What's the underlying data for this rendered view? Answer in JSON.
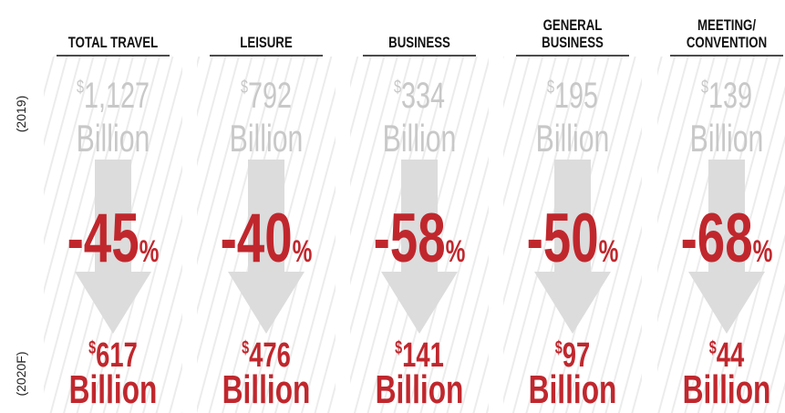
{
  "year_labels": {
    "before": "(2019)",
    "after": "(2020F)"
  },
  "columns": [
    {
      "header": [
        "TOTAL TRAVEL"
      ],
      "before": {
        "currency": "$",
        "amount": "1,127",
        "unit": "Billion"
      },
      "change": {
        "value": "-45",
        "unit": "%"
      },
      "after": {
        "currency": "$",
        "amount": "617",
        "unit": "Billion"
      }
    },
    {
      "header": [
        "LEISURE"
      ],
      "before": {
        "currency": "$",
        "amount": "792",
        "unit": "Billion"
      },
      "change": {
        "value": "-40",
        "unit": "%"
      },
      "after": {
        "currency": "$",
        "amount": "476",
        "unit": "Billion"
      }
    },
    {
      "header": [
        "BUSINESS"
      ],
      "before": {
        "currency": "$",
        "amount": "334",
        "unit": "Billion"
      },
      "change": {
        "value": "-58",
        "unit": "%"
      },
      "after": {
        "currency": "$",
        "amount": "141",
        "unit": "Billion"
      }
    },
    {
      "header": [
        "GENERAL",
        "BUSINESS"
      ],
      "before": {
        "currency": "$",
        "amount": "195",
        "unit": "Billion"
      },
      "change": {
        "value": "-50",
        "unit": "%"
      },
      "after": {
        "currency": "$",
        "amount": "97",
        "unit": "Billion"
      }
    },
    {
      "header": [
        "MEETING/",
        "CONVENTION"
      ],
      "before": {
        "currency": "$",
        "amount": "139",
        "unit": "Billion"
      },
      "change": {
        "value": "-68",
        "unit": "%"
      },
      "after": {
        "currency": "$",
        "amount": "44",
        "unit": "Billion"
      }
    }
  ]
}
